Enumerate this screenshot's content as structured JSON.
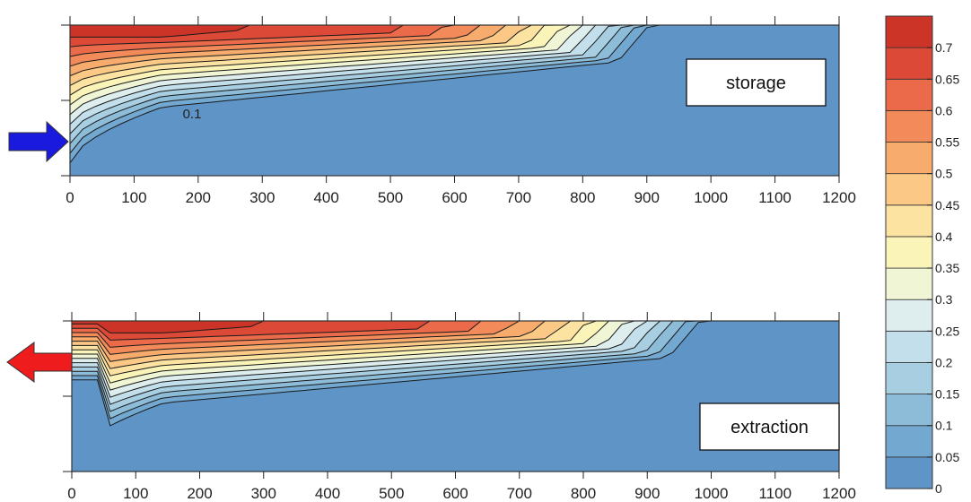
{
  "chart_data": [
    {
      "type": "heatmap",
      "panel_label": "storage",
      "x_ticks": [
        "0",
        "100",
        "200",
        "300",
        "400",
        "500",
        "600",
        "700",
        "800",
        "900",
        "1000",
        "1100",
        "1200"
      ],
      "xlim": [
        0,
        1200
      ],
      "contour_label": "0.1",
      "plume_front_x": 870,
      "flow_arrow": {
        "direction": "in",
        "color": "#1a1adf"
      }
    },
    {
      "type": "heatmap",
      "panel_label": "extraction",
      "x_ticks": [
        "0",
        "100",
        "200",
        "300",
        "400",
        "500",
        "600",
        "700",
        "800",
        "900",
        "1000",
        "1100",
        "1200"
      ],
      "xlim": [
        0,
        1200
      ],
      "plume_front_x": 950,
      "flow_arrow": {
        "direction": "out",
        "color": "#ee1c1c"
      }
    }
  ],
  "colorbar": {
    "levels": [
      "0",
      "0.05",
      "0.1",
      "0.15",
      "0.2",
      "0.25",
      "0.3",
      "0.35",
      "0.4",
      "0.45",
      "0.5",
      "0.55",
      "0.6",
      "0.65",
      "0.7"
    ],
    "colors": [
      "#5f94c6",
      "#73a8d0",
      "#8dbcd9",
      "#a8cee2",
      "#c3dfeb",
      "#deedee",
      "#f0f5d6",
      "#fbf4b8",
      "#fde3a2",
      "#fbc886",
      "#f7ab6d",
      "#f28b59",
      "#ea6a4a",
      "#dc4937",
      "#cb3427"
    ]
  }
}
